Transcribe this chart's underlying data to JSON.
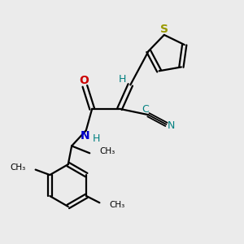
{
  "background_color": "#ebebeb",
  "bond_color": "#000000",
  "S_color": "#999900",
  "N_color": "#0000cc",
  "O_color": "#cc0000",
  "CN_color": "#008080",
  "H_color": "#008080",
  "figsize": [
    3.0,
    3.0
  ],
  "dpi": 100,
  "xlim": [
    0,
    10
  ],
  "ylim": [
    0,
    10
  ]
}
